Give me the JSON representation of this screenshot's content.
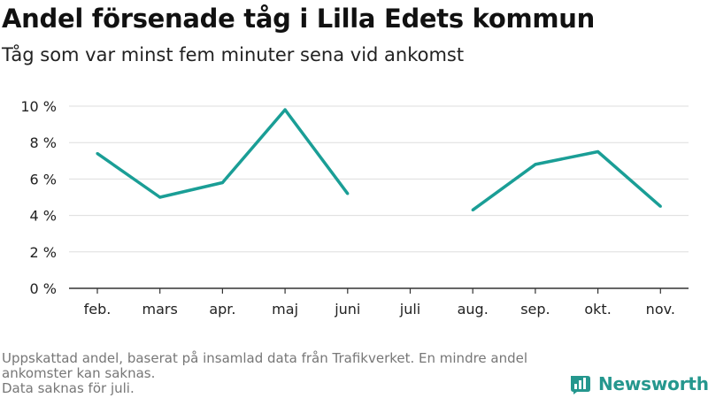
{
  "title": "Andel försenade tåg i Lilla Edets kommun",
  "subtitle": "Tåg som var minst fem minuter sena vid ankomst",
  "footnote": {
    "line1": "Uppskattad andel, baserat på insamlad data från Trafikverket. En mindre andel ankomster kan saknas.",
    "line2": "Data saknas för juli."
  },
  "brand": {
    "name": "Newsworthy",
    "logo_icon": "bar-chart-icon",
    "color": "#25978e"
  },
  "chart_data": {
    "type": "line",
    "categories": [
      "feb.",
      "mars",
      "apr.",
      "maj",
      "juni",
      "juli",
      "aug.",
      "sep.",
      "okt.",
      "nov."
    ],
    "series": [
      {
        "values": [
          7.4,
          5.0,
          5.8,
          9.8,
          5.2,
          null,
          4.3,
          6.8,
          7.5,
          4.5
        ]
      }
    ],
    "ylim": [
      0,
      10
    ],
    "yticks": [
      0,
      2,
      4,
      6,
      8,
      10
    ],
    "ytick_labels": [
      "0 %",
      "2 %",
      "4 %",
      "6 %",
      "8 %",
      "10 %"
    ],
    "grid": true,
    "line_color": "#1a9e96",
    "xlabel": "",
    "ylabel": ""
  }
}
